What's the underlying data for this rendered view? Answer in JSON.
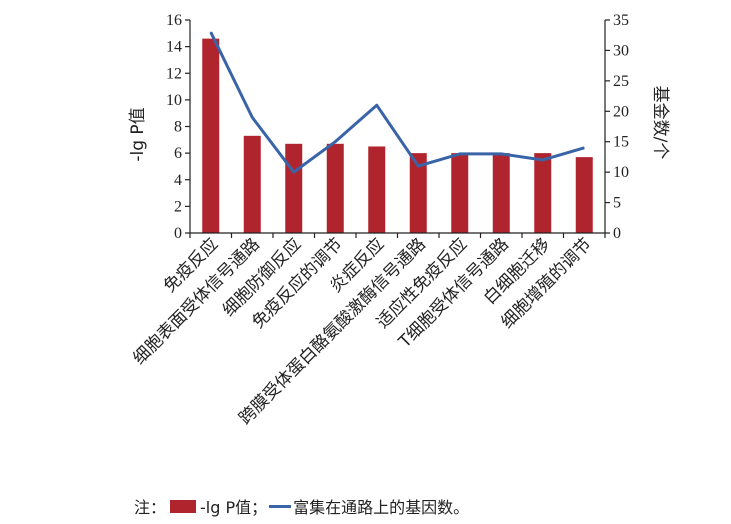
{
  "chart_data": {
    "type": "bar",
    "categories": [
      "免疫反应",
      "细胞表面受体信号通路",
      "细胞防御反应",
      "免疫反应的调节",
      "炎症反应",
      "跨膜受体蛋白酪氨酸激酶信号通路",
      "适应性免疫反应",
      "T细胞受体信号通路",
      "白细胞迁移",
      "细胞增殖的调节"
    ],
    "series": [
      {
        "name": "-lg P值",
        "kind": "bar",
        "axis": "left",
        "color": "#b0252d",
        "values": [
          14.6,
          7.3,
          6.7,
          6.7,
          6.5,
          6.0,
          6.0,
          6.0,
          6.0,
          5.7
        ]
      },
      {
        "name": "富集在通路上的基因数",
        "kind": "line",
        "axis": "right",
        "color": "#3a64a8",
        "values": [
          33,
          19,
          10,
          15,
          21,
          11,
          13,
          13,
          12,
          14
        ]
      }
    ],
    "ylabel_left": "-lg P值",
    "ylabel_right": "基金数/个",
    "ylim_left": [
      0,
      16
    ],
    "yticks_left": [
      0,
      2,
      4,
      6,
      8,
      10,
      12,
      14,
      16
    ],
    "ylim_right": [
      0,
      35
    ],
    "yticks_right": [
      0,
      5,
      10,
      15,
      20,
      25,
      30,
      35
    ],
    "grid": false,
    "legend_position": "bottom"
  },
  "note": {
    "prefix": "注：",
    "bar_label": "-lg P值；",
    "line_label": "富集在通路上的基因数。"
  }
}
